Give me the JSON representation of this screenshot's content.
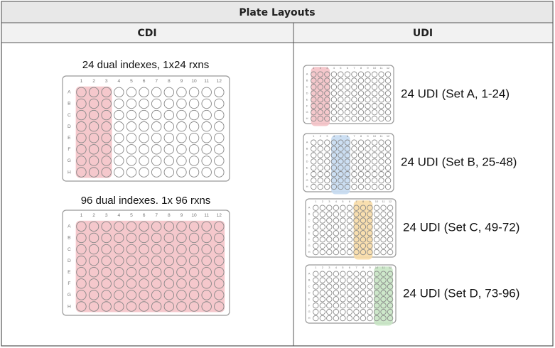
{
  "header": {
    "title": "Plate Layouts",
    "columns": [
      "CDI",
      "UDI"
    ]
  },
  "plate_grid": {
    "row_labels": [
      "A",
      "B",
      "C",
      "D",
      "E",
      "F",
      "G",
      "H"
    ],
    "column_labels": [
      "1",
      "2",
      "3",
      "4",
      "5",
      "6",
      "7",
      "8",
      "9",
      "10",
      "11",
      "12"
    ]
  },
  "cdi": [
    {
      "label": "24 dual indexes, 1x24 rxns",
      "highlight_color": "#f4c2c6",
      "highlight_columns": [
        "1",
        "2",
        "3"
      ]
    },
    {
      "label": "96 dual indexes. 1x 96 rxns",
      "highlight_color": "#f4c2c6",
      "highlight_columns": [
        "1",
        "2",
        "3",
        "4",
        "5",
        "6",
        "7",
        "8",
        "9",
        "10",
        "11",
        "12"
      ]
    }
  ],
  "udi": [
    {
      "label": "24 UDI (Set A, 1-24)",
      "highlight_color": "#f4c2c6",
      "highlight_columns": [
        "1",
        "2",
        "3"
      ]
    },
    {
      "label": "24 UDI (Set B, 25-48)",
      "highlight_color": "#c6dcf2",
      "highlight_columns": [
        "4",
        "5",
        "6"
      ]
    },
    {
      "label": "24 UDI (Set C, 49-72)",
      "highlight_color": "#f8dca6",
      "highlight_columns": [
        "7",
        "8",
        "9"
      ]
    },
    {
      "label": "24 UDI (Set D, 73-96)",
      "highlight_color": "#c8e6c4",
      "highlight_columns": [
        "10",
        "11",
        "12"
      ]
    }
  ]
}
